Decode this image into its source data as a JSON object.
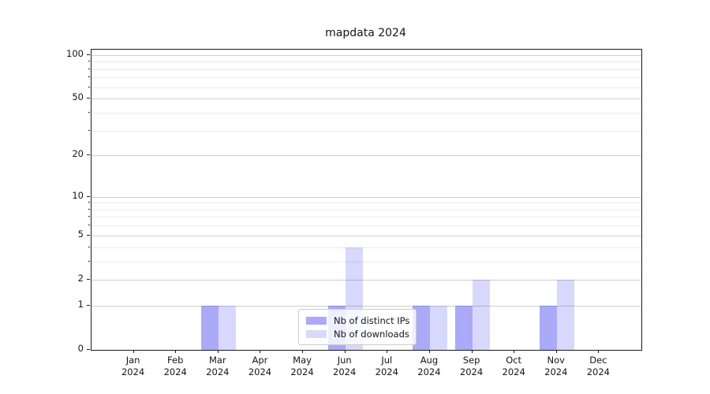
{
  "title": "mapdata 2024",
  "chart_data": {
    "type": "bar",
    "title": "mapdata 2024",
    "categories": [
      {
        "month": "Jan",
        "year": "2024"
      },
      {
        "month": "Feb",
        "year": "2024"
      },
      {
        "month": "Mar",
        "year": "2024"
      },
      {
        "month": "Apr",
        "year": "2024"
      },
      {
        "month": "May",
        "year": "2024"
      },
      {
        "month": "Jun",
        "year": "2024"
      },
      {
        "month": "Jul",
        "year": "2024"
      },
      {
        "month": "Aug",
        "year": "2024"
      },
      {
        "month": "Sep",
        "year": "2024"
      },
      {
        "month": "Oct",
        "year": "2024"
      },
      {
        "month": "Nov",
        "year": "2024"
      },
      {
        "month": "Dec",
        "year": "2024"
      }
    ],
    "series": [
      {
        "name": "Nb of distinct IPs",
        "values": [
          0,
          0,
          1,
          0,
          0,
          1,
          0,
          1,
          1,
          0,
          1,
          0
        ],
        "bar_color": "rgba(0,0,235,0.335)",
        "legend_color": "#aaaaf8"
      },
      {
        "name": "Nb of downloads",
        "values": [
          0,
          0,
          1,
          0,
          0,
          4,
          0,
          1,
          2,
          0,
          2,
          0
        ],
        "bar_color": "rgba(0,0,235,0.152)",
        "legend_color": "#d9d9f9"
      }
    ],
    "yscale": "log1p",
    "ylim": [
      0,
      109
    ],
    "yticks_major": [
      0,
      1,
      2,
      5,
      10,
      20,
      50,
      100
    ],
    "yticks_minor": [
      3,
      4,
      6,
      7,
      8,
      9,
      30,
      40,
      60,
      70,
      80,
      90
    ],
    "grid": true,
    "legend_position": "lower center"
  },
  "colors": {
    "grid_major": "#cfcfcf",
    "grid_minor": "#eaeaea",
    "axis": "#1a1a1a",
    "background": "#ffffff"
  }
}
